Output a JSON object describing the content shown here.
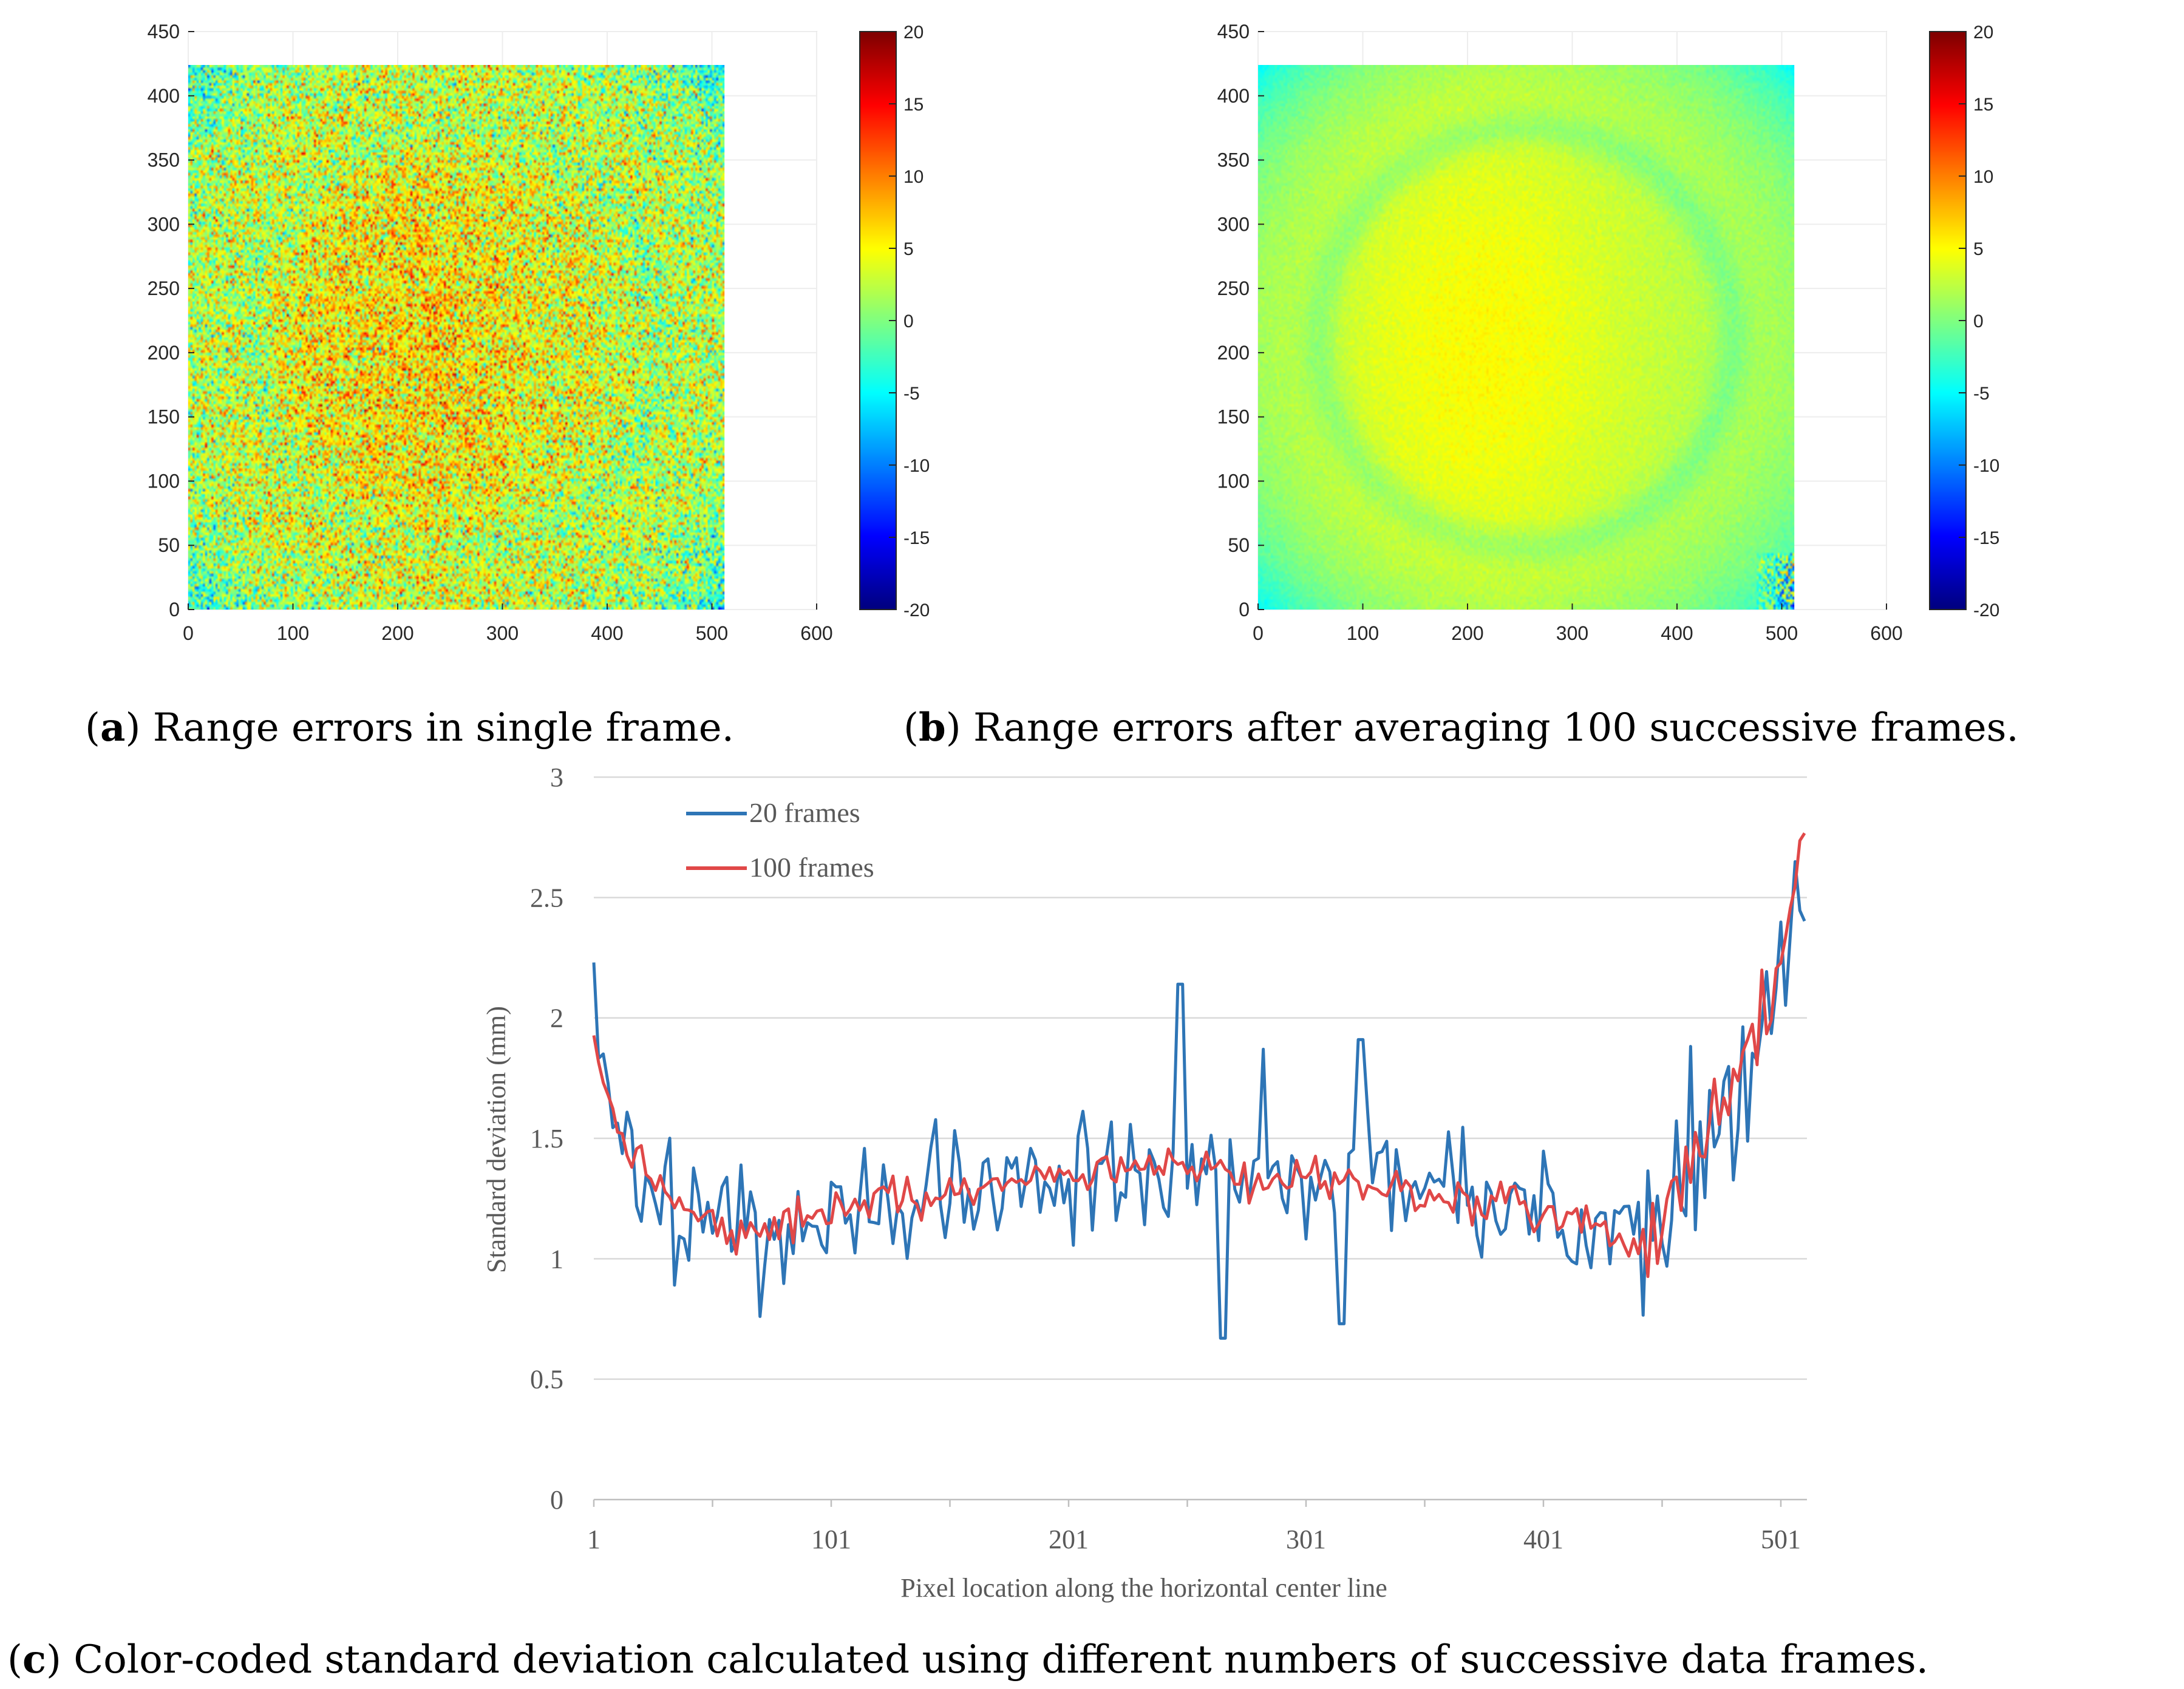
{
  "chart_data": [
    {
      "id": "a",
      "type": "heatmap",
      "caption": {
        "prefix": "(",
        "letter": "a",
        "text": ") Range errors in single frame."
      },
      "x_ticks": [
        "0",
        "100",
        "200",
        "300",
        "400",
        "500",
        "600"
      ],
      "y_ticks": [
        "0",
        "50",
        "100",
        "150",
        "200",
        "250",
        "300",
        "350",
        "400",
        "450"
      ],
      "xlim": [
        0,
        600
      ],
      "ylim": [
        0,
        450
      ],
      "image_extent": {
        "x": [
          0,
          512
        ],
        "y": [
          0,
          424
        ]
      },
      "colorbar": {
        "range": [
          -20,
          20
        ],
        "ticks": [
          "20",
          "15",
          "10",
          "5",
          "0",
          "-5",
          "-10",
          "-15",
          "-20"
        ]
      },
      "mean_error": 3,
      "noise": 4.5,
      "colormap": "jet"
    },
    {
      "id": "b",
      "type": "heatmap",
      "caption": {
        "prefix": "(",
        "letter": "b",
        "text": ") Range errors after averaging 100 successive frames."
      },
      "x_ticks": [
        "0",
        "100",
        "200",
        "300",
        "400",
        "500",
        "600"
      ],
      "y_ticks": [
        "0",
        "50",
        "100",
        "150",
        "200",
        "250",
        "300",
        "350",
        "400",
        "450"
      ],
      "xlim": [
        0,
        600
      ],
      "ylim": [
        0,
        450
      ],
      "image_extent": {
        "x": [
          0,
          512
        ],
        "y": [
          0,
          424
        ]
      },
      "colorbar": {
        "range": [
          -20,
          20
        ],
        "ticks": [
          "20",
          "15",
          "10",
          "5",
          "0",
          "-5",
          "-10",
          "-15",
          "-20"
        ]
      },
      "mean_error": 2,
      "noise": 0.5,
      "colormap": "jet"
    },
    {
      "id": "c",
      "type": "line",
      "caption": {
        "prefix": "(",
        "letter": "c",
        "text": ") Color-coded standard deviation calculated using different numbers of successive data frames."
      },
      "xlabel": "Pixel location along the horizontal center line",
      "ylabel": "Standard deviation (mm)",
      "ylim": [
        0,
        3
      ],
      "y_ticks": [
        "0",
        "0.5",
        "1",
        "1.5",
        "2",
        "2.5",
        "3"
      ],
      "x_ticks": [
        "1",
        "101",
        "201",
        "301",
        "401",
        "501"
      ],
      "xlim": [
        1,
        512
      ],
      "series": [
        {
          "name": "20 frames",
          "color": "#2E75B6",
          "x": [
            1,
            11,
            21,
            31,
            41,
            51,
            61,
            71,
            81,
            91,
            101,
            111,
            121,
            131,
            141,
            151,
            161,
            171,
            181,
            191,
            201,
            211,
            221,
            231,
            241,
            251,
            261,
            271,
            281,
            291,
            301,
            311,
            321,
            331,
            341,
            351,
            361,
            371,
            381,
            391,
            401,
            411,
            421,
            431,
            441,
            451,
            461,
            471,
            481,
            491,
            501,
            511
          ],
          "values": [
            2.05,
            1.45,
            1.3,
            1.2,
            1.18,
            1.14,
            1.12,
            1.1,
            1.13,
            1.17,
            1.2,
            1.22,
            1.24,
            1.25,
            1.26,
            1.27,
            1.28,
            1.3,
            1.32,
            1.33,
            1.35,
            1.37,
            1.38,
            1.38,
            1.37,
            1.36,
            1.35,
            1.34,
            1.33,
            1.33,
            1.32,
            1.31,
            1.3,
            1.29,
            1.28,
            1.27,
            1.26,
            1.25,
            1.24,
            1.23,
            1.21,
            1.19,
            1.17,
            1.12,
            1.08,
            1.18,
            1.32,
            1.52,
            1.75,
            2.0,
            2.2,
            2.45
          ],
          "noise": 0.22,
          "spikes": [
            [
              1,
              2.23
            ],
            [
              248,
              2.14
            ],
            [
              266,
              0.67
            ],
            [
              316,
              0.73
            ],
            [
              283,
              1.87
            ],
            [
              324,
              1.91
            ]
          ]
        },
        {
          "name": "100 frames",
          "color": "#E04848",
          "x": [
            1,
            11,
            21,
            31,
            41,
            51,
            61,
            71,
            81,
            91,
            101,
            111,
            121,
            131,
            141,
            151,
            161,
            171,
            181,
            191,
            201,
            211,
            221,
            231,
            241,
            251,
            261,
            271,
            281,
            291,
            301,
            311,
            321,
            331,
            341,
            351,
            361,
            371,
            381,
            391,
            401,
            411,
            421,
            431,
            441,
            451,
            461,
            471,
            481,
            491,
            501,
            511
          ],
          "values": [
            1.9,
            1.5,
            1.35,
            1.25,
            1.2,
            1.15,
            1.12,
            1.1,
            1.13,
            1.17,
            1.2,
            1.22,
            1.24,
            1.25,
            1.26,
            1.27,
            1.28,
            1.3,
            1.32,
            1.33,
            1.35,
            1.37,
            1.38,
            1.38,
            1.37,
            1.36,
            1.35,
            1.34,
            1.33,
            1.33,
            1.32,
            1.31,
            1.3,
            1.29,
            1.28,
            1.27,
            1.26,
            1.25,
            1.24,
            1.23,
            1.21,
            1.19,
            1.17,
            1.12,
            1.05,
            1.12,
            1.32,
            1.52,
            1.75,
            2.0,
            2.3,
            2.8
          ],
          "noise": 0.07,
          "spikes": []
        }
      ]
    }
  ]
}
